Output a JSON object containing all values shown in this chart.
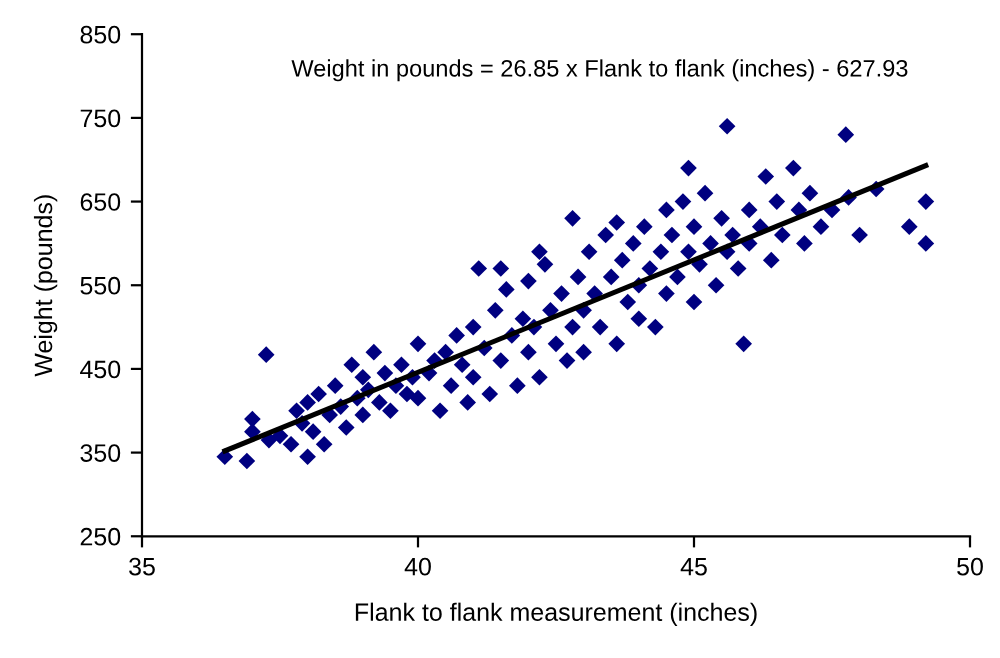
{
  "chart_data": {
    "type": "scatter",
    "xlabel": "Flank to flank measurement (inches)",
    "ylabel": "Weight (pounds)",
    "annotations": [
      "Weight in pounds = 26.85 x Flank to flank (inches) - 627.93"
    ],
    "xlim": [
      35,
      50
    ],
    "xticks": [
      35,
      40,
      45,
      50
    ],
    "ylim": [
      250,
      850
    ],
    "yticks": [
      250,
      350,
      450,
      550,
      650,
      750,
      850
    ],
    "grid": false,
    "legend": false,
    "marker": "diamond",
    "series": [
      {
        "color": "#000080",
        "x": [
          36.5,
          36.9,
          37.0,
          37.0,
          37.25,
          37.3,
          37.5,
          37.7,
          37.8,
          37.9,
          38.0,
          38.0,
          38.1,
          38.2,
          38.3,
          38.4,
          38.5,
          38.6,
          38.7,
          38.8,
          38.9,
          39.0,
          39.0,
          39.1,
          39.2,
          39.3,
          39.4,
          39.5,
          39.6,
          39.7,
          39.8,
          39.9,
          40.0,
          40.0,
          40.2,
          40.3,
          40.4,
          40.5,
          40.6,
          40.7,
          40.8,
          40.9,
          41.0,
          41.0,
          41.1,
          41.2,
          41.3,
          41.4,
          41.5,
          41.6,
          41.7,
          41.8,
          41.9,
          42.0,
          42.0,
          42.1,
          42.2,
          42.3,
          42.4,
          42.5,
          42.6,
          42.7,
          42.8,
          42.8,
          42.9,
          43.0,
          43.0,
          43.1,
          43.2,
          43.3,
          43.4,
          43.5,
          43.6,
          43.7,
          43.8,
          43.9,
          44.0,
          44.0,
          44.1,
          44.2,
          44.3,
          44.4,
          44.5,
          44.5,
          44.6,
          44.7,
          44.8,
          44.9,
          45.0,
          45.0,
          45.1,
          45.2,
          45.3,
          45.4,
          45.5,
          45.6,
          45.6,
          45.7,
          45.8,
          45.9,
          46.0,
          46.0,
          46.2,
          46.3,
          46.4,
          46.5,
          46.6,
          46.8,
          46.9,
          47.0,
          47.1,
          47.3,
          47.5,
          47.75,
          47.8,
          48.0,
          48.3,
          48.9,
          49.2,
          49.2,
          41.5,
          43.6,
          44.9,
          42.2
        ],
        "values": [
          345,
          340,
          375,
          390,
          467,
          365,
          370,
          360,
          400,
          385,
          345,
          410,
          375,
          420,
          360,
          395,
          430,
          405,
          380,
          455,
          415,
          440,
          395,
          425,
          470,
          410,
          445,
          400,
          430,
          455,
          420,
          440,
          480,
          415,
          445,
          460,
          400,
          470,
          430,
          490,
          455,
          410,
          500,
          440,
          570,
          475,
          420,
          520,
          460,
          545,
          490,
          430,
          510,
          470,
          555,
          500,
          440,
          575,
          520,
          480,
          540,
          460,
          630,
          500,
          560,
          520,
          470,
          590,
          540,
          500,
          610,
          560,
          480,
          580,
          530,
          600,
          550,
          510,
          620,
          570,
          500,
          590,
          640,
          540,
          610,
          560,
          650,
          590,
          620,
          530,
          575,
          660,
          600,
          550,
          630,
          740,
          590,
          610,
          570,
          480,
          640,
          600,
          620,
          680,
          580,
          650,
          610,
          690,
          640,
          600,
          660,
          620,
          640,
          730,
          655,
          610,
          665,
          620,
          650,
          600,
          570,
          625,
          690,
          590
        ]
      },
      {
        "type": "line",
        "color": "#000000",
        "marker": "none",
        "x": [
          36.5,
          49.2
        ],
        "values": [
          352,
          693
        ]
      }
    ]
  }
}
